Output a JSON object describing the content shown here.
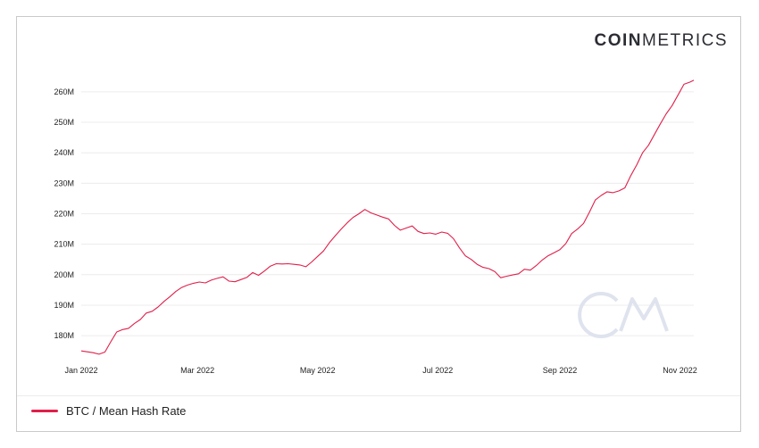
{
  "logo": {
    "bold": "COIN",
    "light": "METRICS"
  },
  "legend_label": "BTC / Mean Hash Rate",
  "colors": {
    "series": "#e0204a",
    "grid": "#ececec",
    "watermark": "#dfe3ee"
  },
  "chart_data": {
    "type": "line",
    "title": "",
    "xlabel": "",
    "ylabel": "",
    "ylim": [
      173,
      267
    ],
    "y_ticks": [
      180,
      190,
      200,
      210,
      220,
      230,
      240,
      250,
      260
    ],
    "y_tick_labels": [
      "180M",
      "190M",
      "200M",
      "210M",
      "220M",
      "230M",
      "240M",
      "250M",
      "260M"
    ],
    "x_tick_labels": [
      "Jan 2022",
      "Mar 2022",
      "May 2022",
      "Jul 2022",
      "Sep 2022",
      "Nov 2022"
    ],
    "x_tick_dates": [
      "2022-01-01",
      "2022-03-01",
      "2022-05-01",
      "2022-07-01",
      "2022-09-01",
      "2022-11-01"
    ],
    "xlim": [
      "2022-01-01",
      "2022-11-08"
    ],
    "grid": "horizontal",
    "legend_position": "bottom-left",
    "series": [
      {
        "name": "BTC / Mean Hash Rate",
        "points": [
          [
            "2022-01-01",
            175.0
          ],
          [
            "2022-01-04",
            174.7
          ],
          [
            "2022-01-07",
            174.4
          ],
          [
            "2022-01-10",
            173.9
          ],
          [
            "2022-01-13",
            174.6
          ],
          [
            "2022-01-16",
            178.0
          ],
          [
            "2022-01-19",
            181.2
          ],
          [
            "2022-01-22",
            182.0
          ],
          [
            "2022-01-25",
            182.4
          ],
          [
            "2022-01-28",
            184.0
          ],
          [
            "2022-01-31",
            185.3
          ],
          [
            "2022-02-03",
            187.4
          ],
          [
            "2022-02-06",
            188.0
          ],
          [
            "2022-02-09",
            189.4
          ],
          [
            "2022-02-12",
            191.2
          ],
          [
            "2022-02-15",
            192.8
          ],
          [
            "2022-02-18",
            194.5
          ],
          [
            "2022-02-21",
            195.8
          ],
          [
            "2022-02-24",
            196.6
          ],
          [
            "2022-02-27",
            197.2
          ],
          [
            "2022-03-02",
            197.6
          ],
          [
            "2022-03-05",
            197.3
          ],
          [
            "2022-03-08",
            198.2
          ],
          [
            "2022-03-11",
            198.8
          ],
          [
            "2022-03-14",
            199.3
          ],
          [
            "2022-03-17",
            197.9
          ],
          [
            "2022-03-20",
            197.7
          ],
          [
            "2022-03-23",
            198.4
          ],
          [
            "2022-03-26",
            199.1
          ],
          [
            "2022-03-29",
            200.7
          ],
          [
            "2022-04-01",
            199.8
          ],
          [
            "2022-04-04",
            201.2
          ],
          [
            "2022-04-07",
            202.8
          ],
          [
            "2022-04-10",
            203.6
          ],
          [
            "2022-04-13",
            203.5
          ],
          [
            "2022-04-16",
            203.6
          ],
          [
            "2022-04-19",
            203.4
          ],
          [
            "2022-04-22",
            203.2
          ],
          [
            "2022-04-25",
            202.6
          ],
          [
            "2022-04-28",
            204.2
          ],
          [
            "2022-05-01",
            206.0
          ],
          [
            "2022-05-04",
            207.8
          ],
          [
            "2022-05-07",
            210.5
          ],
          [
            "2022-05-10",
            212.8
          ],
          [
            "2022-05-13",
            215.0
          ],
          [
            "2022-05-16",
            217.0
          ],
          [
            "2022-05-19",
            218.8
          ],
          [
            "2022-05-22",
            220.0
          ],
          [
            "2022-05-25",
            221.4
          ],
          [
            "2022-05-28",
            220.3
          ],
          [
            "2022-05-31",
            219.6
          ],
          [
            "2022-06-03",
            218.9
          ],
          [
            "2022-06-06",
            218.3
          ],
          [
            "2022-06-09",
            216.2
          ],
          [
            "2022-06-12",
            214.6
          ],
          [
            "2022-06-15",
            215.3
          ],
          [
            "2022-06-18",
            216.0
          ],
          [
            "2022-06-21",
            214.2
          ],
          [
            "2022-06-24",
            213.5
          ],
          [
            "2022-06-27",
            213.7
          ],
          [
            "2022-06-30",
            213.3
          ],
          [
            "2022-07-03",
            214.0
          ],
          [
            "2022-07-06",
            213.6
          ],
          [
            "2022-07-09",
            211.8
          ],
          [
            "2022-07-12",
            208.8
          ],
          [
            "2022-07-15",
            206.2
          ],
          [
            "2022-07-18",
            205.0
          ],
          [
            "2022-07-21",
            203.4
          ],
          [
            "2022-07-24",
            202.4
          ],
          [
            "2022-07-27",
            202.0
          ],
          [
            "2022-07-30",
            201.0
          ],
          [
            "2022-08-02",
            199.0
          ],
          [
            "2022-08-05",
            199.5
          ],
          [
            "2022-08-08",
            199.9
          ],
          [
            "2022-08-11",
            200.3
          ],
          [
            "2022-08-14",
            201.8
          ],
          [
            "2022-08-17",
            201.5
          ],
          [
            "2022-08-20",
            203.0
          ],
          [
            "2022-08-23",
            204.8
          ],
          [
            "2022-08-26",
            206.2
          ],
          [
            "2022-08-29",
            207.2
          ],
          [
            "2022-09-01",
            208.2
          ],
          [
            "2022-09-04",
            210.2
          ],
          [
            "2022-09-07",
            213.5
          ],
          [
            "2022-09-10",
            215.0
          ],
          [
            "2022-09-13",
            216.8
          ],
          [
            "2022-09-16",
            220.5
          ],
          [
            "2022-09-19",
            224.5
          ],
          [
            "2022-09-22",
            226.0
          ],
          [
            "2022-09-25",
            227.2
          ],
          [
            "2022-09-28",
            226.9
          ],
          [
            "2022-10-01",
            227.5
          ],
          [
            "2022-10-04",
            228.5
          ],
          [
            "2022-10-07",
            232.5
          ],
          [
            "2022-10-10",
            236.0
          ],
          [
            "2022-10-13",
            240.0
          ],
          [
            "2022-10-16",
            242.5
          ],
          [
            "2022-10-19",
            246.0
          ],
          [
            "2022-10-22",
            249.5
          ],
          [
            "2022-10-25",
            252.8
          ],
          [
            "2022-10-28",
            255.5
          ],
          [
            "2022-10-31",
            259.0
          ],
          [
            "2022-11-03",
            262.5
          ],
          [
            "2022-11-06",
            263.2
          ],
          [
            "2022-11-08",
            263.8
          ]
        ]
      }
    ]
  }
}
